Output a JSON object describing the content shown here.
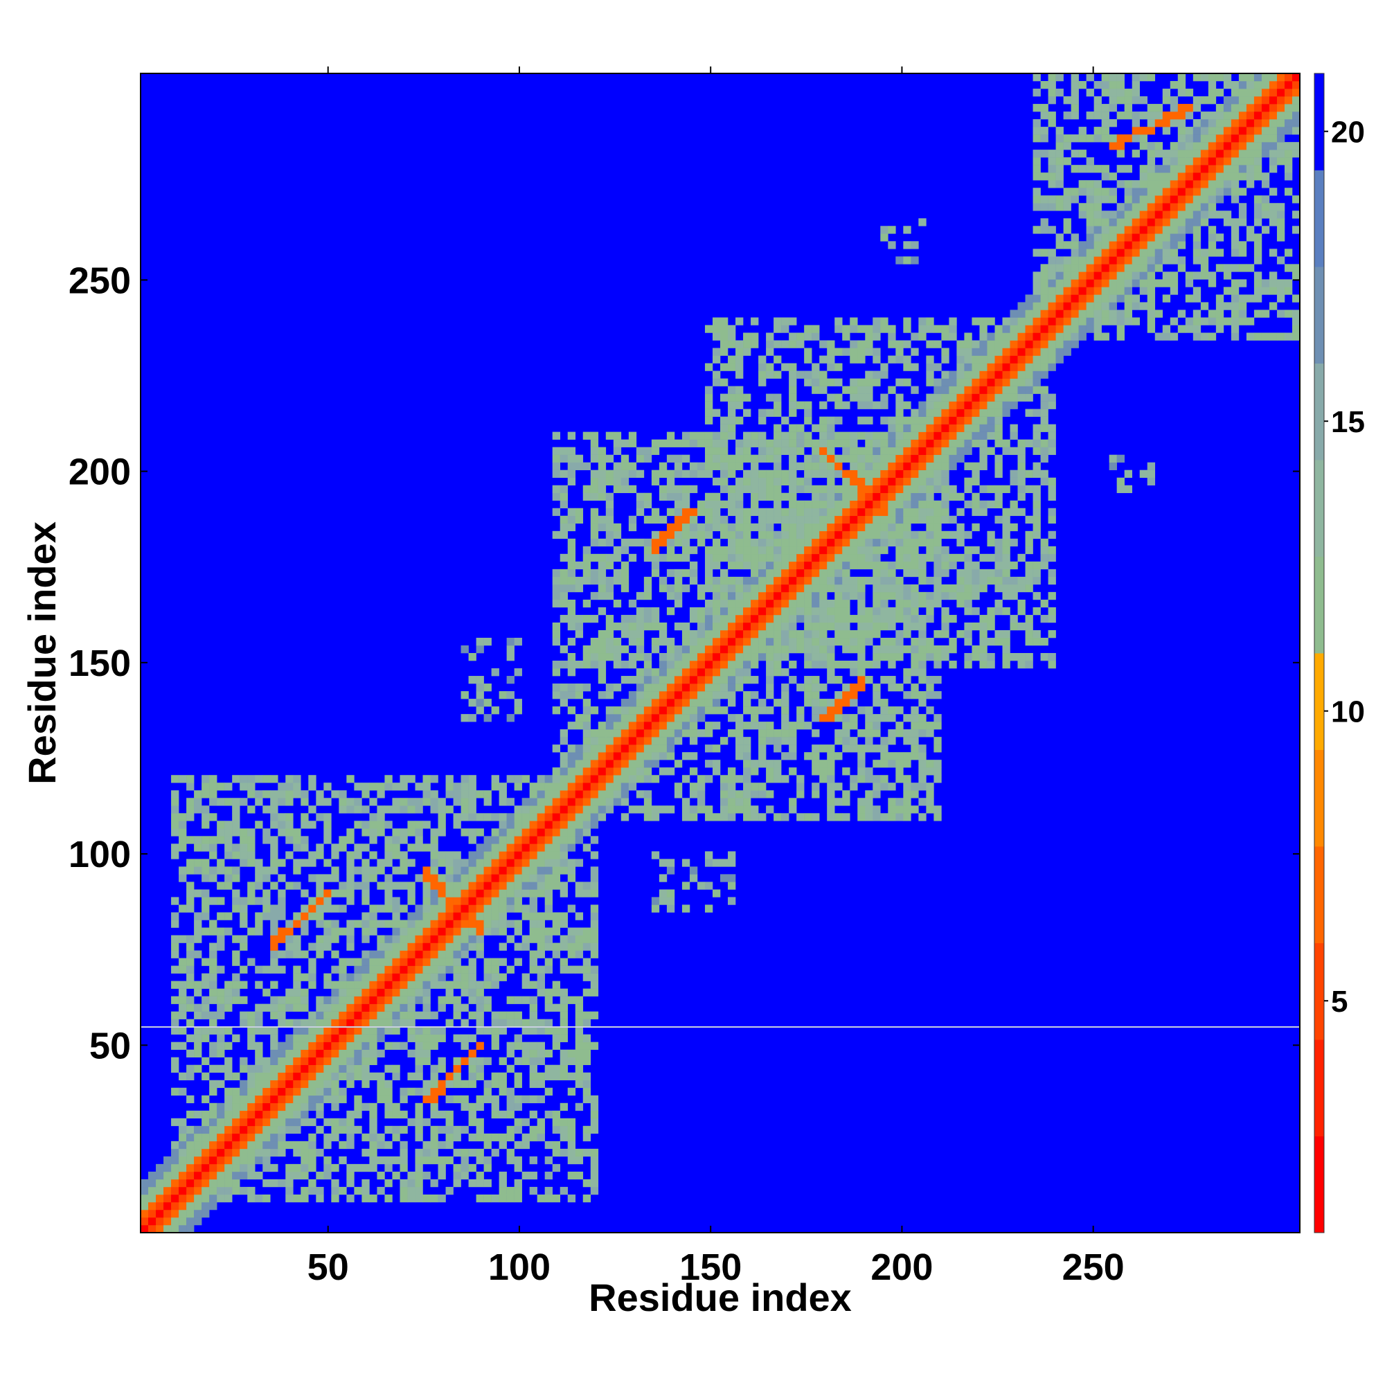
{
  "chart_data": {
    "type": "heatmap",
    "title": "",
    "xlabel": "Residue index",
    "ylabel": "Residue index",
    "xlim": [
      1,
      304
    ],
    "ylim": [
      1,
      304
    ],
    "x_ticks": [
      50,
      100,
      150,
      200,
      250
    ],
    "y_ticks": [
      50,
      100,
      150,
      200,
      250
    ],
    "x_tick_labels": [
      "50",
      "100",
      "150",
      "200",
      "250"
    ],
    "y_tick_labels": [
      "50",
      "100",
      "150",
      "200",
      "250"
    ],
    "grid": false,
    "colorbar": {
      "location": "right",
      "range": [
        1,
        21
      ],
      "ticks": [
        5,
        10,
        15,
        20
      ],
      "tick_labels": [
        "5",
        "10",
        "15",
        "20"
      ],
      "colors": [
        "#ff0000",
        "#ff2200",
        "#ff4400",
        "#ff6600",
        "#ff8800",
        "#ffaa00",
        "#8fbc8f",
        "#8fb6a0",
        "#88aaaa",
        "#6e8fb3",
        "#5a7fc0",
        "#0000ff"
      ]
    },
    "background_value": 21,
    "contact_features": [
      {
        "type": "diagonal",
        "range": [
          1,
          304
        ],
        "value": 3.8
      },
      {
        "type": "block",
        "x_range": [
          10,
          120
        ],
        "y_range": [
          10,
          120
        ],
        "value": 13
      },
      {
        "type": "block",
        "x_range": [
          110,
          210
        ],
        "y_range": [
          110,
          210
        ],
        "value": 13
      },
      {
        "type": "block",
        "x_range": [
          150,
          240
        ],
        "y_range": [
          150,
          240
        ],
        "value": 13
      },
      {
        "type": "block",
        "x_range": [
          235,
          304
        ],
        "y_range": [
          235,
          304
        ],
        "value": 13
      },
      {
        "type": "antiparallel_strand",
        "x_range": [
          75,
          90
        ],
        "y_range": [
          95,
          80
        ],
        "value": 6
      },
      {
        "type": "antiparallel_strand",
        "x_range": [
          180,
          195
        ],
        "y_range": [
          205,
          190
        ],
        "value": 6
      },
      {
        "type": "parallel_strand",
        "x_range": [
          35,
          50
        ],
        "y_range": [
          75,
          90
        ],
        "value": 6
      },
      {
        "type": "parallel_strand",
        "x_range": [
          75,
          90
        ],
        "y_range": [
          35,
          50
        ],
        "value": 6
      },
      {
        "type": "parallel_strand",
        "x_range": [
          135,
          145
        ],
        "y_range": [
          180,
          190
        ],
        "value": 6
      },
      {
        "type": "parallel_strand",
        "x_range": [
          180,
          190
        ],
        "y_range": [
          135,
          145
        ],
        "value": 6
      },
      {
        "type": "helix_pair",
        "x_range": [
          255,
          275
        ],
        "y_range": [
          285,
          295
        ],
        "value": 7
      },
      {
        "type": "patch",
        "x_range": [
          135,
          155
        ],
        "y_range": [
          85,
          100
        ],
        "value": 14
      },
      {
        "type": "patch",
        "x_range": [
          85,
          100
        ],
        "y_range": [
          135,
          155
        ],
        "value": 14
      },
      {
        "type": "patch",
        "x_range": [
          195,
          205
        ],
        "y_range": [
          255,
          265
        ],
        "value": 14
      },
      {
        "type": "patch",
        "x_range": [
          255,
          265
        ],
        "y_range": [
          195,
          205
        ],
        "value": 14
      }
    ],
    "annotations": []
  }
}
